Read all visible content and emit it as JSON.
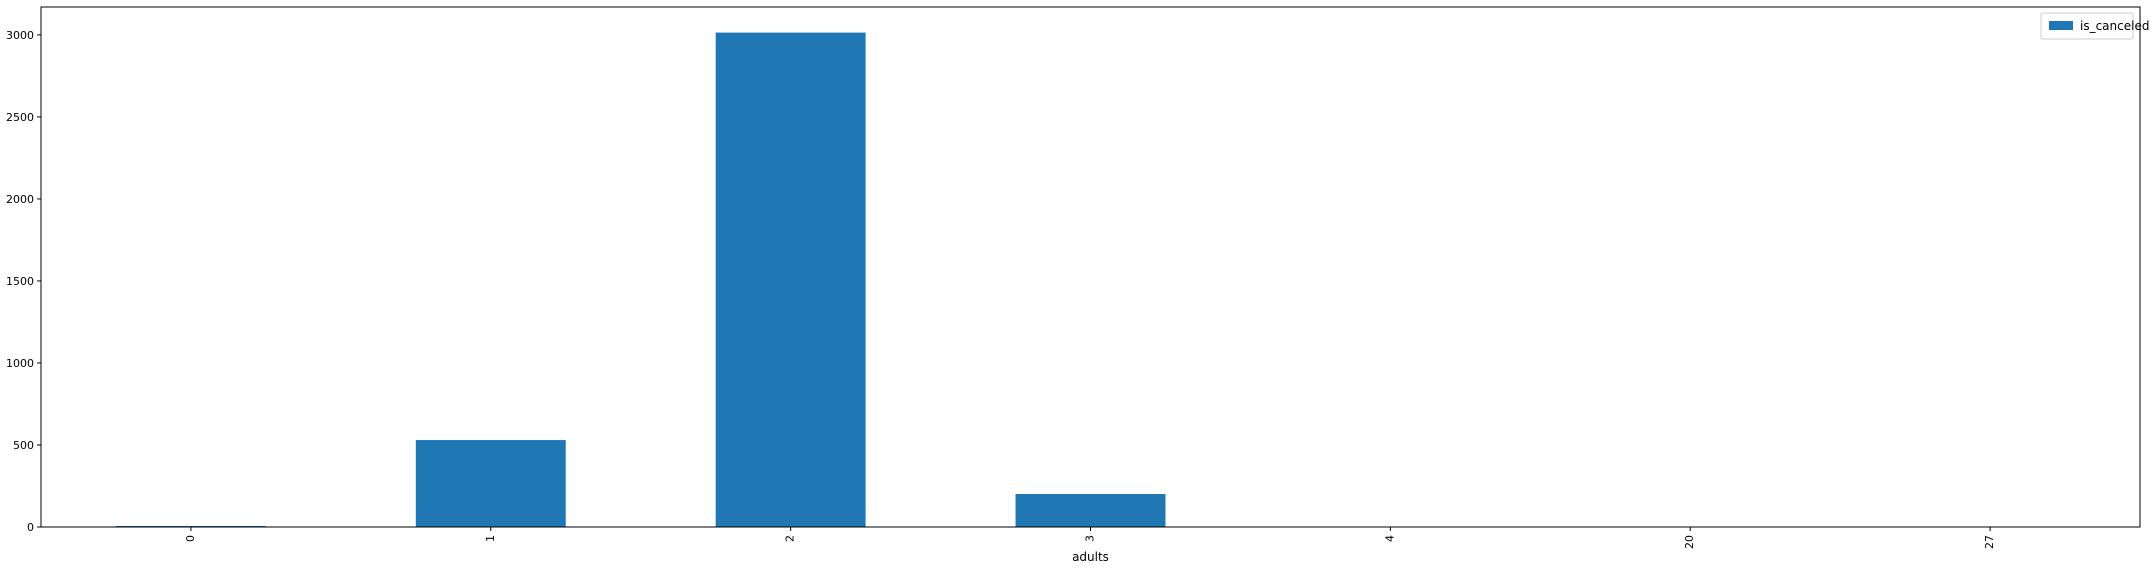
{
  "chart_data": {
    "type": "bar",
    "xlabel": "adults",
    "ylabel": "",
    "categories": [
      "0",
      "1",
      "2",
      "3",
      "4",
      "20",
      "27"
    ],
    "series": [
      {
        "name": "is_canceled",
        "values": [
          6,
          530,
          3014,
          201,
          0,
          2,
          1
        ]
      }
    ],
    "ylim": [
      0,
      3170
    ],
    "yticks": [
      0,
      500,
      1000,
      1500,
      2000,
      2500,
      3000
    ],
    "legend": "top-right",
    "grid": false,
    "bar_color": "#1f77b4"
  }
}
